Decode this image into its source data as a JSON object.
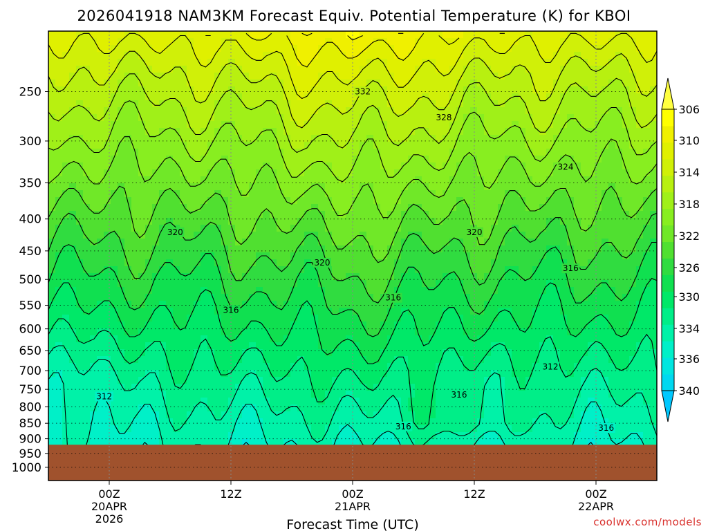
{
  "chart_data": {
    "type": "heatmap",
    "title": "2026041918 NAM3KM Forecast Equiv. Potential Temperature (K) for KBOI",
    "xlabel": "Forecast Time (UTC)",
    "ylabel": "",
    "y_scale": "log",
    "y_ticks": [
      250,
      300,
      350,
      400,
      450,
      500,
      550,
      600,
      650,
      700,
      750,
      800,
      850,
      900,
      950,
      1000
    ],
    "ylim": [
      1050,
      200
    ],
    "x_ticks": [
      {
        "hour": 6,
        "label_lines": [
          "00Z",
          "20APR",
          "2026"
        ]
      },
      {
        "hour": 18,
        "label_lines": [
          "12Z"
        ]
      },
      {
        "hour": 30,
        "label_lines": [
          "00Z",
          "21APR"
        ]
      },
      {
        "hour": 42,
        "label_lines": [
          "12Z"
        ]
      },
      {
        "hour": 54,
        "label_lines": [
          "00Z",
          "22APR"
        ]
      }
    ],
    "xlim": [
      0,
      60
    ],
    "grid": true,
    "colorbar": {
      "ticks": [
        306,
        310,
        314,
        318,
        322,
        326,
        330,
        334,
        336,
        340
      ],
      "levels": [
        304,
        306,
        308,
        310,
        312,
        314,
        316,
        318,
        320,
        322,
        324,
        326,
        328,
        330,
        332,
        334,
        336,
        338,
        340,
        342
      ],
      "colors": [
        "#00c8ff",
        "#00d8f0",
        "#00e6e0",
        "#00f0c8",
        "#00f2a8",
        "#00ee88",
        "#00e868",
        "#10e050",
        "#30dc40",
        "#50e030",
        "#70e828",
        "#88ee20",
        "#a0f018",
        "#b8f010",
        "#d0f008",
        "#e0f000",
        "#f0f000",
        "#ffff00",
        "#ffff40"
      ],
      "position": "right"
    },
    "ground_color": "#a0522d",
    "ground_top_hpa": 920,
    "contour_interval": 2,
    "contour_labels": [
      {
        "text": "332",
        "hour": 31,
        "hpa": 250
      },
      {
        "text": "328",
        "hour": 39,
        "hpa": 275
      },
      {
        "text": "324",
        "hour": 51,
        "hpa": 330
      },
      {
        "text": "320",
        "hour": 12.5,
        "hpa": 420
      },
      {
        "text": "320",
        "hour": 27,
        "hpa": 470
      },
      {
        "text": "320",
        "hour": 42,
        "hpa": 420
      },
      {
        "text": "316",
        "hour": 51.5,
        "hpa": 480
      },
      {
        "text": "316",
        "hour": 34,
        "hpa": 535
      },
      {
        "text": "316",
        "hour": 18,
        "hpa": 560
      },
      {
        "text": "312",
        "hour": 5.5,
        "hpa": 770
      },
      {
        "text": "312",
        "hour": 49.5,
        "hpa": 690
      },
      {
        "text": "316",
        "hour": 40.5,
        "hpa": 765
      },
      {
        "text": "316",
        "hour": 35,
        "hpa": 860
      },
      {
        "text": "316",
        "hour": 55,
        "hpa": 865
      }
    ]
  },
  "credit": "coolwx.com/models"
}
